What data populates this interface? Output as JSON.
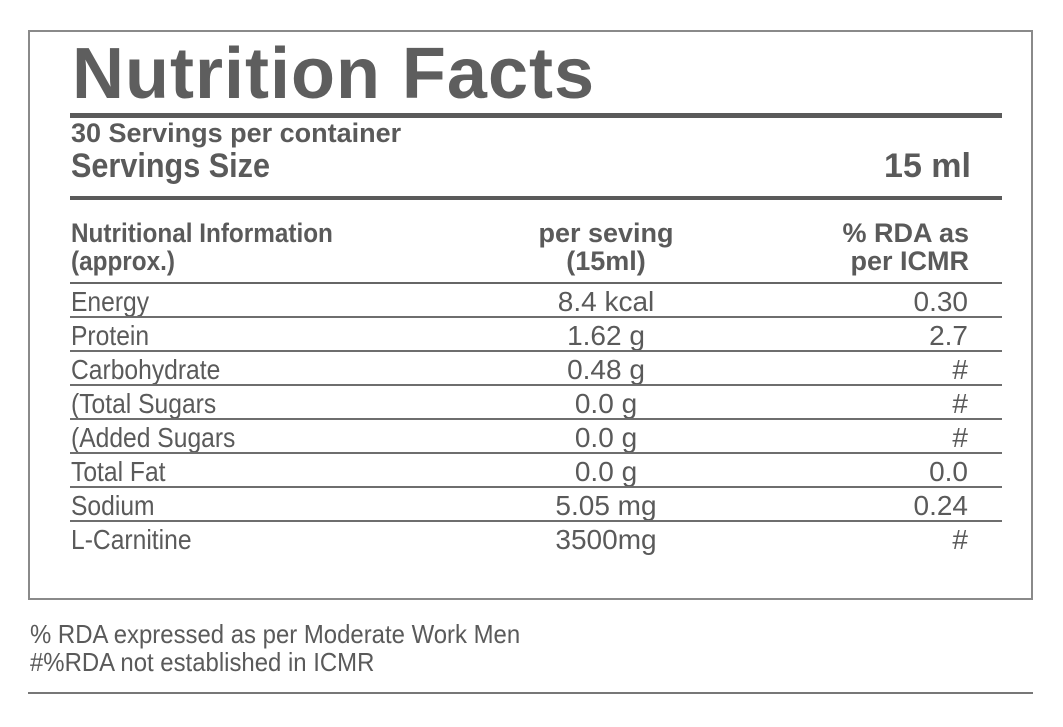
{
  "label": {
    "title": "Nutrition Facts",
    "servings_per_container": "30 Servings per container",
    "serving_size_label": "Servings Size",
    "serving_size_value": "15 ml"
  },
  "table": {
    "headers": {
      "col1_line1": "Nutritional Information",
      "col1_line2": "(approx.)",
      "col2_line1": "per seving",
      "col2_line2": "(15ml)",
      "col3_line1": "% RDA as",
      "col3_line2": "per ICMR"
    },
    "rows": [
      {
        "name": "Energy",
        "value": "8.4 kcal",
        "rda": "0.30"
      },
      {
        "name": "Protein",
        "value": "1.62 g",
        "rda": "2.7"
      },
      {
        "name": "Carbohydrate",
        "value": "0.48 g",
        "rda": "#"
      },
      {
        "name": "(Total Sugars",
        "value": "0.0 g",
        "rda": "#"
      },
      {
        "name": "(Added Sugars",
        "value": "0.0 g",
        "rda": "#"
      },
      {
        "name": "Total Fat",
        "value": "0.0 g",
        "rda": "0.0"
      },
      {
        "name": "Sodium",
        "value": "5.05 mg",
        "rda": "0.24"
      },
      {
        "name": "L-Carnitine",
        "value": "3500mg",
        "rda": "#"
      }
    ]
  },
  "footnotes": {
    "note1": "% RDA expressed as per Moderate Work Men",
    "note2": "#%RDA not established in ICMR"
  }
}
